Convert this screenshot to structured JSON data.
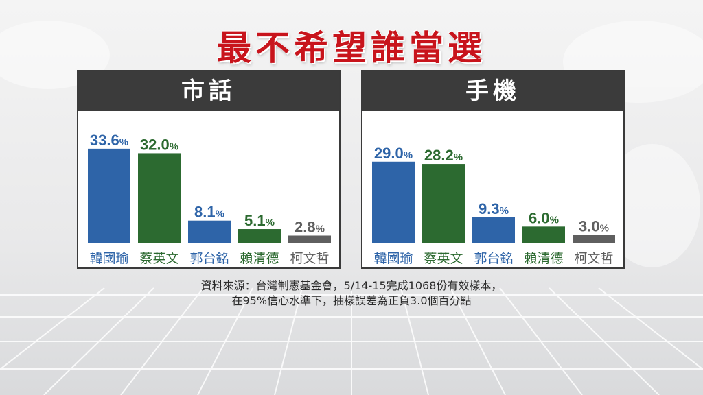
{
  "title": "最不希望誰當選",
  "colors": {
    "title": "#c8141c",
    "header_bg": "#3b3b3b",
    "blue": "#2e64a8",
    "green": "#2c6a30",
    "gray": "#5f5f5f"
  },
  "chart_data": [
    {
      "type": "bar",
      "title": "市話",
      "categories": [
        "韓國瑜",
        "蔡英文",
        "郭台銘",
        "賴清德",
        "柯文哲"
      ],
      "values": [
        33.6,
        32.0,
        8.1,
        5.1,
        2.8
      ],
      "value_labels": [
        "33.6",
        "32.0",
        "8.1",
        "5.1",
        "2.8"
      ],
      "unit": "%",
      "bar_colors": [
        "#2e64a8",
        "#2c6a30",
        "#2e64a8",
        "#2c6a30",
        "#5f5f5f"
      ],
      "ylim": [
        0,
        36
      ],
      "grid": false,
      "xlabel": "",
      "ylabel": ""
    },
    {
      "type": "bar",
      "title": "手機",
      "categories": [
        "韓國瑜",
        "蔡英文",
        "郭台銘",
        "賴清德",
        "柯文哲"
      ],
      "values": [
        29.0,
        28.2,
        9.3,
        6.0,
        3.0
      ],
      "value_labels": [
        "29.0",
        "28.2",
        "9.3",
        "6.0",
        "3.0"
      ],
      "unit": "%",
      "bar_colors": [
        "#2e64a8",
        "#2c6a30",
        "#2e64a8",
        "#2c6a30",
        "#5f5f5f"
      ],
      "ylim": [
        0,
        36
      ],
      "grid": false,
      "xlabel": "",
      "ylabel": ""
    }
  ],
  "source": {
    "line1": "資料來源：台灣制憲基金會，5/14-15完成1068份有效樣本，",
    "line2": "在95%信心水準下，抽樣誤差為正負3.0個百分點"
  }
}
